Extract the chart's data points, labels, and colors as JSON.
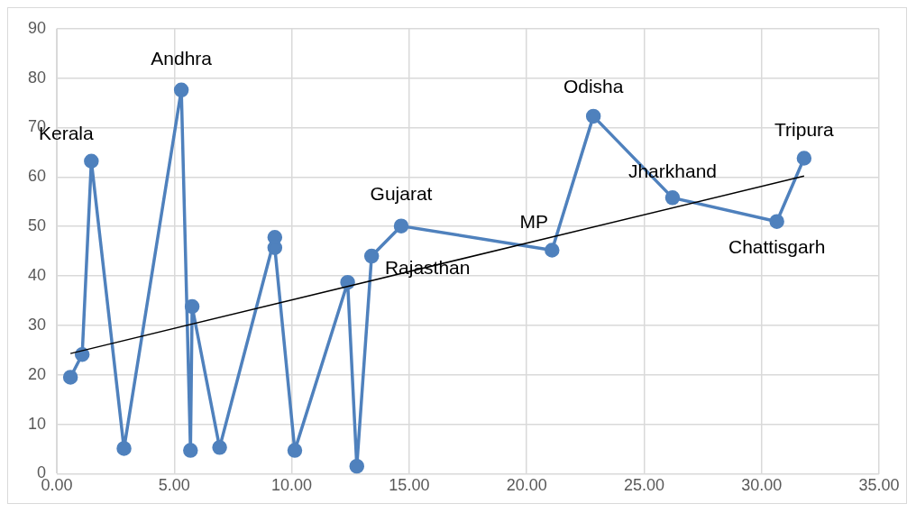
{
  "chart_data": {
    "type": "line",
    "xlim": [
      0,
      35
    ],
    "ylim": [
      0,
      90
    ],
    "xticks": [
      {
        "value": 0,
        "label": "0.00"
      },
      {
        "value": 5,
        "label": "5.00"
      },
      {
        "value": 10,
        "label": "10.00"
      },
      {
        "value": 15,
        "label": "15.00"
      },
      {
        "value": 20,
        "label": "20.00"
      },
      {
        "value": 25,
        "label": "25.00"
      },
      {
        "value": 30,
        "label": "30.00"
      },
      {
        "value": 35,
        "label": "35.00"
      }
    ],
    "yticks": [
      0,
      10,
      20,
      30,
      40,
      50,
      60,
      70,
      80,
      90
    ],
    "grid": true,
    "legend": false,
    "marker": "circle",
    "line_style": "solid",
    "series": [
      {
        "color": "#4f81bd",
        "x": [
          0.58,
          1.08,
          1.47,
          2.86,
          5.3,
          5.69,
          5.76,
          6.93,
          9.28,
          9.28,
          10.13,
          12.38,
          12.77,
          13.4,
          14.66,
          21.08,
          22.84,
          26.21,
          30.65,
          31.81
        ],
        "values": [
          19.5,
          24.1,
          63.2,
          5.1,
          77.6,
          4.7,
          33.8,
          5.3,
          47.8,
          45.7,
          4.7,
          38.7,
          1.5,
          44.0,
          50.1,
          45.2,
          72.3,
          55.8,
          51.0,
          63.8
        ]
      },
      {
        "type": "line",
        "marker": "none",
        "color": "#000000",
        "x": [
          0.58,
          31.81
        ],
        "values": [
          24.3,
          60.2
        ]
      }
    ],
    "annotations": [
      {
        "text": "Kerala",
        "x": 1.47,
        "y": 63.2
      },
      {
        "text": "Andhra",
        "x": 5.3,
        "y": 77.6
      },
      {
        "text": "Rajasthan",
        "x": 13.4,
        "y": 44.0
      },
      {
        "text": "Gujarat",
        "x": 14.66,
        "y": 50.1
      },
      {
        "text": "MP",
        "x": 21.08,
        "y": 45.2
      },
      {
        "text": "Odisha",
        "x": 22.84,
        "y": 72.3
      },
      {
        "text": "Jharkhand",
        "x": 26.21,
        "y": 55.8
      },
      {
        "text": "Chattisgarh",
        "x": 30.65,
        "y": 51.0
      },
      {
        "text": "Tripura",
        "x": 31.81,
        "y": 63.8
      }
    ]
  }
}
